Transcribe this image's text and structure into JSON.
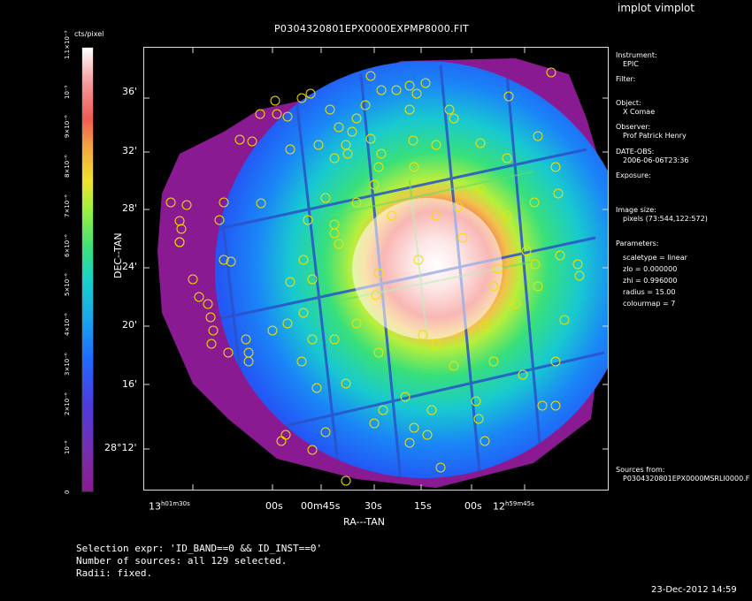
{
  "app_title": "implot vimplot",
  "plot_title": "P0304320801EPX0000EXPMP8000.FIT",
  "colorbar": {
    "unit": "cts/pixel",
    "ticks": [
      "0",
      "10⁻⁶",
      "2×10⁻⁶",
      "3×10⁻⁶",
      "4×10⁻⁶",
      "5×10⁻⁶",
      "6×10⁻⁶",
      "7×10⁻⁶",
      "8×10⁻⁶",
      "9×10⁻⁶",
      "10⁻⁵",
      "1.1×10⁻⁵"
    ]
  },
  "axes": {
    "ylabel": "DEC--TAN",
    "xlabel": "RA---TAN",
    "yticks": [
      "36'",
      "32'",
      "28'",
      "24'",
      "20'",
      "16'",
      "28°12'"
    ],
    "xticks": [
      {
        "main": "13",
        "rest": "h01m30s"
      },
      {
        "main": "00s",
        "rest": ""
      },
      {
        "main": "00m45s",
        "rest": ""
      },
      {
        "main": "30s",
        "rest": ""
      },
      {
        "main": "15s",
        "rest": ""
      },
      {
        "main": "00s",
        "rest": ""
      },
      {
        "main": "12",
        "rest": "h59m45s"
      }
    ]
  },
  "meta": {
    "instrument_label": "Instrument:",
    "instrument_value": "EPIC",
    "filter_label": "Filter:",
    "object_label": "Object:",
    "object_value": "X Comae",
    "observer_label": "Observer:",
    "observer_value": "Prof Patrick Henry",
    "date_label": "DATE-OBS:",
    "date_value": "2006-06-06T23:36",
    "exposure_label": "Exposure:",
    "image_size_label": "Image size:",
    "image_size_value": "pixels (73:544,122:572)",
    "parameters_label": "Parameters:",
    "params": [
      "scaletype = linear",
      "zlo = 0.000000",
      "zhi = 0.996000",
      "radius = 15.00",
      "colourmap = 7"
    ],
    "sources_label": "Sources from:",
    "sources_value": "P0304320801EPX0000MSRLI0000.F"
  },
  "selection": {
    "expr": "Selection expr: 'ID_BAND==0 && ID_INST==0'",
    "count": "Number of sources: all 129 selected.",
    "radii": "Radii: fixed."
  },
  "timestamp": "23-Dec-2012 14:59",
  "colors": {
    "exposure_edge": "#8a1a92",
    "source_marker": "#f2e100"
  }
}
